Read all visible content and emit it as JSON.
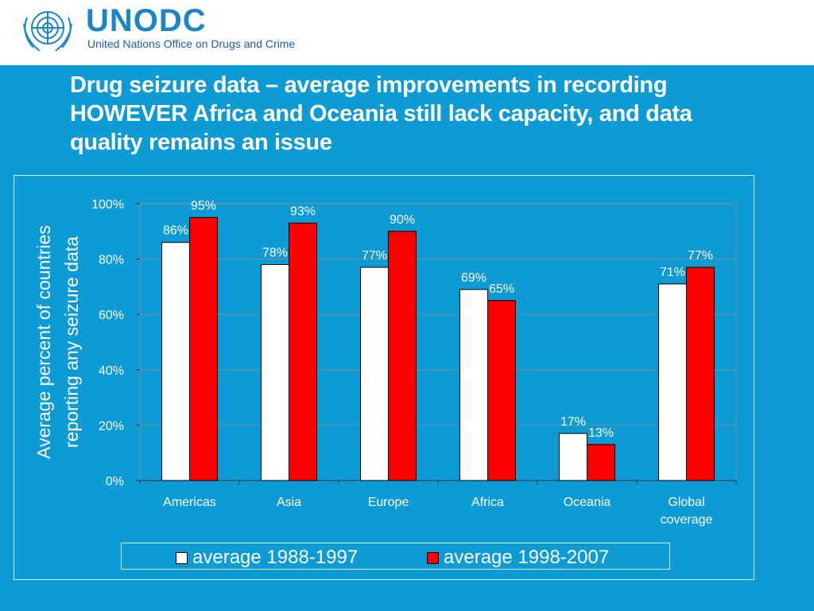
{
  "header": {
    "logo_text": "UNODC",
    "logo_subtitle": "United Nations Office on Drugs and Crime",
    "logo_color": "#1a86c8"
  },
  "slide": {
    "title_lines": [
      "Drug seizure data – average improvements in recording",
      "HOWEVER Africa and Oceania still lack capacity, and data",
      "quality remains an issue"
    ],
    "background": "#0c9bd4"
  },
  "chart_data": {
    "type": "bar",
    "categories": [
      "Americas",
      "Asia",
      "Europe",
      "Africa",
      "Oceania",
      "Global coverage"
    ],
    "series": [
      {
        "name": "average 1988-1997",
        "color": "#ffffff",
        "values": [
          86,
          78,
          77,
          69,
          17,
          71
        ],
        "labels": [
          "86%",
          "78%",
          "77%",
          "69%",
          "17%",
          "71%"
        ]
      },
      {
        "name": "average 1998-2007",
        "color": "#ff0000",
        "values": [
          95,
          93,
          90,
          65,
          13,
          77
        ],
        "labels": [
          "95%",
          "93%",
          "90%",
          "65%",
          "13%",
          "77%"
        ]
      }
    ],
    "ylabel": "Average percent of countries reporting any seizure data",
    "ylabel_lines": [
      "Average percent of countries",
      "reporting any seizure data"
    ],
    "ylim": [
      0,
      100
    ],
    "yticks": [
      0,
      20,
      40,
      60,
      80,
      100
    ],
    "ytick_labels": [
      "0%",
      "20%",
      "40%",
      "60%",
      "80%",
      "100%"
    ],
    "grid": true,
    "legend_position": "bottom"
  }
}
